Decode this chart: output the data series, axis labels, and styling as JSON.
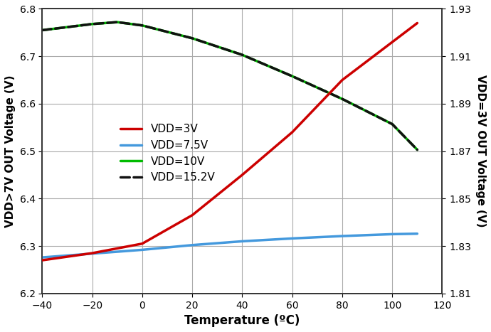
{
  "xlabel": "Temperature (ºC)",
  "ylabel_left": "VDD>7V OUT Voltage (V)",
  "ylabel_right": "VDD=3V OUT Voltage (V)",
  "xlim": [
    -40,
    120
  ],
  "ylim_left": [
    6.2,
    6.8
  ],
  "ylim_right": [
    1.81,
    1.93
  ],
  "xticks": [
    -40,
    -20,
    0,
    20,
    40,
    60,
    80,
    100,
    120
  ],
  "yticks_left": [
    6.2,
    6.3,
    6.4,
    6.5,
    6.6,
    6.7,
    6.8
  ],
  "yticks_right": [
    1.81,
    1.83,
    1.85,
    1.87,
    1.89,
    1.91,
    1.93
  ],
  "vdd3v": {
    "temp": [
      -40,
      -20,
      0,
      20,
      40,
      60,
      80,
      100,
      110
    ],
    "vout": [
      1.824,
      1.827,
      1.831,
      1.843,
      1.86,
      1.878,
      1.9,
      1.916,
      1.924
    ],
    "color": "#cc0000",
    "lw": 2.5,
    "label": "VDD=3V"
  },
  "vdd7p5v": {
    "temp": [
      -40,
      -20,
      0,
      20,
      40,
      60,
      80,
      100,
      110
    ],
    "vout": [
      6.276,
      6.284,
      6.292,
      6.302,
      6.31,
      6.316,
      6.321,
      6.325,
      6.326
    ],
    "color": "#4499dd",
    "lw": 2.5,
    "label": "VDD=7.5V"
  },
  "vdd10v": {
    "temp": [
      -40,
      -20,
      -10,
      0,
      20,
      40,
      60,
      80,
      100,
      110
    ],
    "vout": [
      6.755,
      6.768,
      6.772,
      6.765,
      6.738,
      6.703,
      6.658,
      6.61,
      6.557,
      6.503
    ],
    "color": "#00bb00",
    "lw": 2.5,
    "label": "VDD=10V"
  },
  "vdd15p2v": {
    "temp": [
      -40,
      -20,
      -10,
      0,
      20,
      40,
      60,
      80,
      100,
      110
    ],
    "vout": [
      6.755,
      6.768,
      6.772,
      6.765,
      6.738,
      6.703,
      6.658,
      6.61,
      6.557,
      6.503
    ],
    "color": "#111111",
    "lw": 2.5,
    "linestyle": "--",
    "label": "VDD=15.2V"
  },
  "grid_color": "#aaaaaa",
  "bg_color": "#ffffff"
}
